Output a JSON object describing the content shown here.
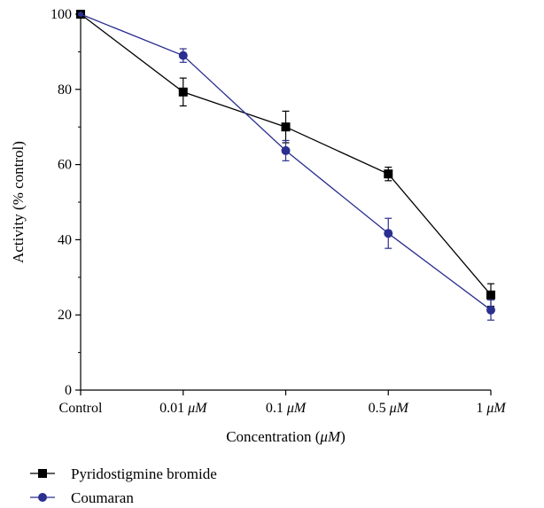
{
  "chart_data": {
    "type": "line",
    "categories": [
      "Control",
      "0.01 μM",
      "0.1 μM",
      "0.5 μM",
      "1 μM"
    ],
    "category_labels": [
      {
        "value": "Control",
        "unit": ""
      },
      {
        "value": "0.01 ",
        "unit": "μM"
      },
      {
        "value": "0.1 ",
        "unit": "μM"
      },
      {
        "value": "0.5 ",
        "unit": "μM"
      },
      {
        "value": "1 ",
        "unit": "μM"
      }
    ],
    "series": [
      {
        "name": "Pyridostigmine bromide",
        "color": "#000000",
        "marker": "square",
        "values": [
          100,
          79.3,
          70.0,
          57.5,
          25.3
        ],
        "errors": [
          0,
          3.7,
          4.2,
          1.8,
          3.0
        ]
      },
      {
        "name": "Coumaran",
        "color": "#2b2f8f",
        "marker": "circle",
        "values": [
          100,
          89.0,
          63.7,
          41.7,
          21.3
        ],
        "errors": [
          0,
          1.8,
          2.7,
          4.0,
          2.7
        ]
      }
    ],
    "xlabel_prefix": "Concentration (",
    "xlabel_unit": "μM",
    "xlabel_suffix": ")",
    "ylabel": "Activity (% control)",
    "ylim": [
      0,
      100
    ],
    "yticks": [
      "0",
      "20",
      "40",
      "60",
      "80",
      "100"
    ],
    "legend_placement": "bottom-left",
    "grid": false
  }
}
